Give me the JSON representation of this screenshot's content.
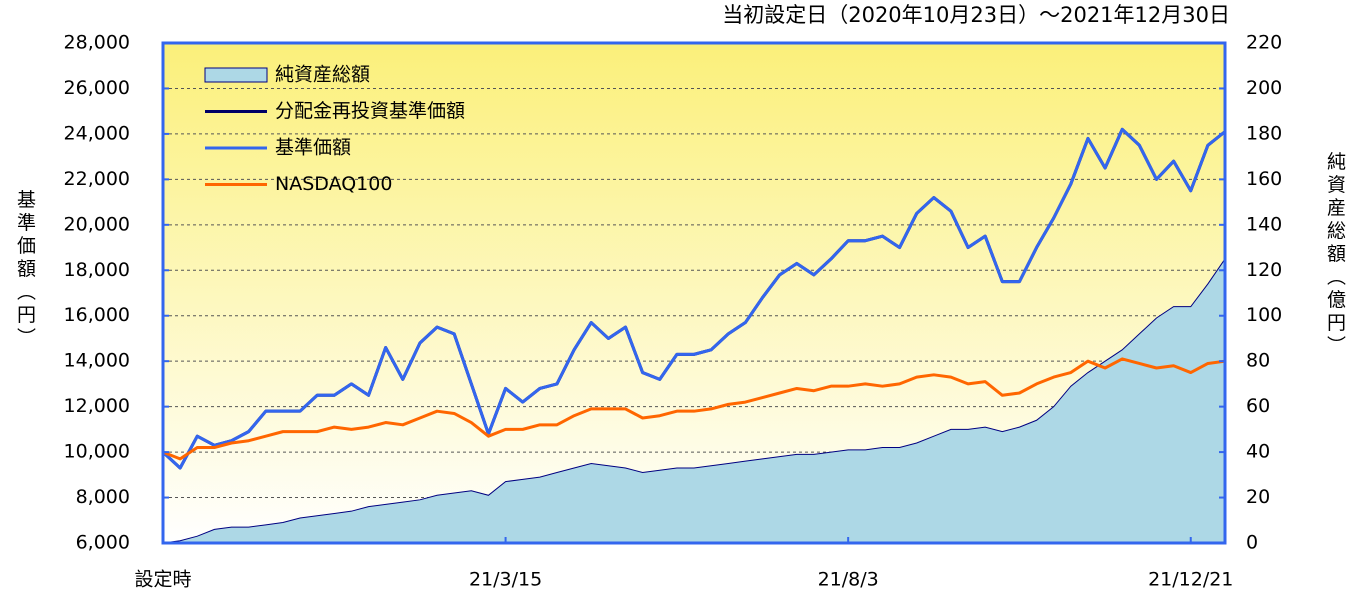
{
  "chart_data": {
    "type": "line",
    "title": "当初設定日（2020年10月23日）～2021年12月30日",
    "y_label": "基準価額（円）",
    "y2_label": "純資産総額（億円）",
    "categories": [
      "設定時",
      null,
      null,
      null,
      null,
      null,
      null,
      null,
      null,
      null,
      null,
      null,
      null,
      null,
      null,
      null,
      null,
      null,
      null,
      null,
      "21/3/15",
      null,
      null,
      null,
      null,
      null,
      null,
      null,
      null,
      null,
      null,
      null,
      null,
      null,
      null,
      null,
      null,
      null,
      null,
      null,
      "21/8/3",
      null,
      null,
      null,
      null,
      null,
      null,
      null,
      null,
      null,
      null,
      null,
      null,
      null,
      null,
      null,
      null,
      null,
      null,
      null,
      "21/12/21",
      null,
      null
    ],
    "series": [
      {
        "name": "純資産総額",
        "style": "area",
        "axis": "y2",
        "color": "#add8e6",
        "line_color": "#000080",
        "values": [
          0,
          1,
          3,
          6,
          7,
          7,
          8,
          9,
          11,
          12,
          13,
          14,
          16,
          17,
          18,
          19,
          21,
          22,
          23,
          21,
          27,
          28,
          29,
          31,
          33,
          35,
          34,
          33,
          31,
          32,
          33,
          33,
          34,
          35,
          36,
          37,
          38,
          39,
          39,
          40,
          41,
          41,
          42,
          42,
          44,
          47,
          50,
          50,
          51,
          49,
          51,
          54,
          60,
          69,
          75,
          80,
          85,
          92,
          99,
          104,
          104,
          114,
          125
        ]
      },
      {
        "name": "分配金再投資基準価額",
        "style": "line",
        "color": "#000066",
        "values": [
          10000,
          9300,
          10700,
          10300,
          10500,
          10900,
          11800,
          11800,
          11800,
          12500,
          12500,
          13000,
          12500,
          14600,
          13200,
          14800,
          15500,
          15200,
          13000,
          10800,
          12800,
          12200,
          12800,
          13000,
          14500,
          15700,
          15000,
          15500,
          13500,
          13200,
          14300,
          14300,
          14500,
          15200,
          15700,
          16800,
          17800,
          18300,
          17800,
          18500,
          19300,
          19300,
          19500,
          19000,
          20500,
          21200,
          20600,
          19000,
          19500,
          17500,
          17500,
          19000,
          20300,
          21800,
          23800,
          22500,
          24200,
          23500,
          22000,
          22800,
          21500,
          23500,
          24100
        ]
      },
      {
        "name": "基準価額",
        "style": "line",
        "color": "#3366ee",
        "values": [
          10000,
          9300,
          10700,
          10300,
          10500,
          10900,
          11800,
          11800,
          11800,
          12500,
          12500,
          13000,
          12500,
          14600,
          13200,
          14800,
          15500,
          15200,
          13000,
          10800,
          12800,
          12200,
          12800,
          13000,
          14500,
          15700,
          15000,
          15500,
          13500,
          13200,
          14300,
          14300,
          14500,
          15200,
          15700,
          16800,
          17800,
          18300,
          17800,
          18500,
          19300,
          19300,
          19500,
          19000,
          20500,
          21200,
          20600,
          19000,
          19500,
          17500,
          17500,
          19000,
          20300,
          21800,
          23800,
          22500,
          24200,
          23500,
          22000,
          22800,
          21500,
          23500,
          24100
        ]
      },
      {
        "name": "NASDAQ100",
        "style": "line",
        "color": "#ff6600",
        "values": [
          10000,
          9700,
          10200,
          10200,
          10400,
          10500,
          10700,
          10900,
          10900,
          10900,
          11100,
          11000,
          11100,
          11300,
          11200,
          11500,
          11800,
          11700,
          11300,
          10700,
          11000,
          11000,
          11200,
          11200,
          11600,
          11900,
          11900,
          11900,
          11500,
          11600,
          11800,
          11800,
          11900,
          12100,
          12200,
          12400,
          12600,
          12800,
          12700,
          12900,
          12900,
          13000,
          12900,
          13000,
          13300,
          13400,
          13300,
          13000,
          13100,
          12500,
          12600,
          13000,
          13300,
          13500,
          14000,
          13700,
          14100,
          13900,
          13700,
          13800,
          13500,
          13900,
          14000
        ]
      }
    ],
    "ylim": [
      6000,
      28000
    ],
    "yticks": [
      {
        "value": 6000,
        "label": "6,000"
      },
      {
        "value": 8000,
        "label": "8,000"
      },
      {
        "value": 10000,
        "label": "10,000"
      },
      {
        "value": 12000,
        "label": "12,000"
      },
      {
        "value": 14000,
        "label": "14,000"
      },
      {
        "value": 16000,
        "label": "16,000"
      },
      {
        "value": 18000,
        "label": "18,000"
      },
      {
        "value": 20000,
        "label": "20,000"
      },
      {
        "value": 22000,
        "label": "22,000"
      },
      {
        "value": 24000,
        "label": "24,000"
      },
      {
        "value": 26000,
        "label": "26,000"
      },
      {
        "value": 28000,
        "label": "28,000"
      }
    ],
    "y2lim": [
      0,
      220
    ],
    "y2ticks": [
      0,
      20,
      40,
      60,
      80,
      100,
      120,
      140,
      160,
      180,
      200,
      220
    ],
    "grid": true,
    "legend": "top-left"
  }
}
